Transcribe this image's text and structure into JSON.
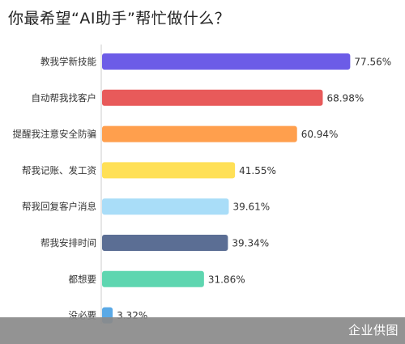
{
  "chart_data": {
    "type": "bar",
    "orientation": "horizontal",
    "title": "你最希望“AI助手”帮忙做什么？",
    "categories": [
      "教我学新技能",
      "自动帮我找客户",
      "提醒我注意安全防骗",
      "帮我记账、发工资",
      "帮我回复客户消息",
      "帮我安排时间",
      "都想要",
      "没必要"
    ],
    "values": [
      77.56,
      68.98,
      60.94,
      41.55,
      39.61,
      39.34,
      31.86,
      3.32
    ],
    "value_labels": [
      "77.56%",
      "68.98%",
      "60.94%",
      "41.55%",
      "39.61%",
      "39.34%",
      "31.86%",
      "3.32%"
    ],
    "colors": [
      "#6C5CE7",
      "#E85A5A",
      "#FF9F4D",
      "#FFE056",
      "#A9DDF8",
      "#5B6E94",
      "#5ED6B0",
      "#5AA9E6"
    ],
    "xlim": [
      0,
      100
    ],
    "grid": false,
    "legend": false
  },
  "watermark": "企业供图"
}
